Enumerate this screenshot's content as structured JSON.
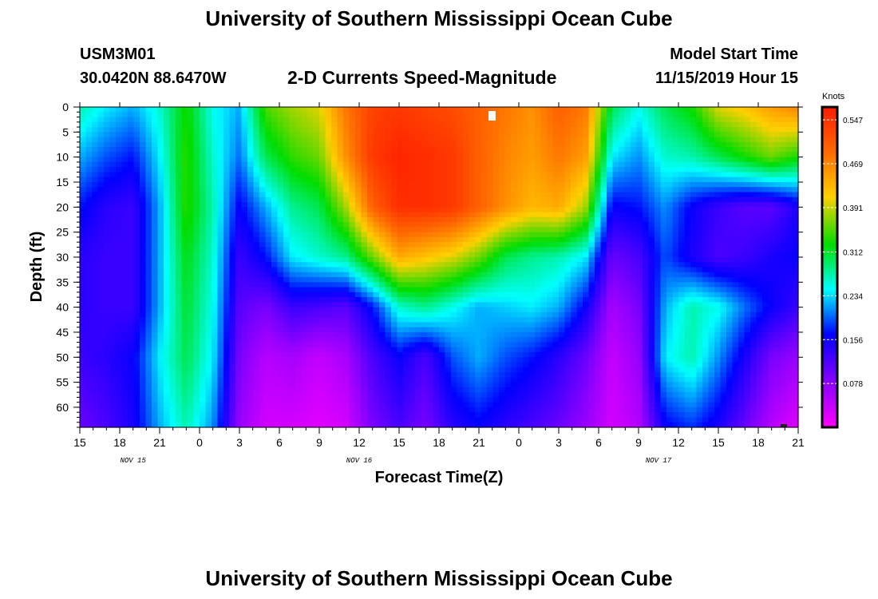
{
  "header": {
    "title": "University of Southern Mississippi Ocean Cube",
    "station_id": "USM3M01",
    "coordinates": "30.0420N 88.6470W",
    "plot_subtitle": "2-D Currents Speed-Magnitude",
    "model_start_label": "Model Start Time",
    "model_start_value": "11/15/2019 Hour 15"
  },
  "footer": {
    "title": "University of Southern Mississippi Ocean Cube"
  },
  "chart_data": {
    "type": "heatmap",
    "title": "2-D Currents Speed-Magnitude",
    "xlabel": "Forecast Time(Z)",
    "ylabel": "Depth (ft)",
    "x_hours_range": [
      0,
      54
    ],
    "x_tick_labels": [
      "15",
      "18",
      "21",
      "0",
      "3",
      "6",
      "9",
      "12",
      "15",
      "18",
      "21",
      "0",
      "3",
      "6",
      "9",
      "12",
      "15",
      "18",
      "21"
    ],
    "date_labels": [
      {
        "hour": 4,
        "text": "NOV 15"
      },
      {
        "hour": 21,
        "text": "NOV 16"
      },
      {
        "hour": 43.5,
        "text": "NOV 17"
      }
    ],
    "y_ticks": [
      0,
      5,
      10,
      15,
      20,
      25,
      30,
      35,
      40,
      45,
      50,
      55,
      60
    ],
    "y_range": [
      0,
      64
    ],
    "colorbar": {
      "unit": "Knots",
      "ticks": [
        "0.547",
        "0.469",
        "0.391",
        "0.312",
        "0.234",
        "0.156",
        "0.078"
      ],
      "tick_values": [
        0.547,
        0.469,
        0.391,
        0.312,
        0.234,
        0.156,
        0.078
      ],
      "range": [
        0,
        0.57
      ]
    },
    "speed_knots_by_hour": {
      "hours": [
        0,
        2,
        4,
        6,
        8,
        10,
        12,
        14,
        16,
        18,
        20,
        22,
        24,
        26,
        28,
        30,
        32,
        34,
        36,
        38,
        40,
        42,
        44,
        46,
        48,
        50,
        52,
        54
      ],
      "depth_0": [
        0.27,
        0.24,
        0.22,
        0.26,
        0.33,
        0.25,
        0.22,
        0.35,
        0.38,
        0.4,
        0.48,
        0.53,
        0.54,
        0.53,
        0.52,
        0.5,
        0.48,
        0.46,
        0.5,
        0.48,
        0.3,
        0.25,
        0.3,
        0.33,
        0.4,
        0.42,
        0.45,
        0.47
      ],
      "depth_10": [
        0.22,
        0.19,
        0.17,
        0.24,
        0.34,
        0.26,
        0.2,
        0.3,
        0.34,
        0.36,
        0.46,
        0.54,
        0.56,
        0.55,
        0.54,
        0.5,
        0.47,
        0.45,
        0.48,
        0.45,
        0.24,
        0.21,
        0.26,
        0.27,
        0.3,
        0.33,
        0.36,
        0.33
      ],
      "depth_20": [
        0.17,
        0.14,
        0.13,
        0.22,
        0.34,
        0.27,
        0.16,
        0.22,
        0.28,
        0.3,
        0.38,
        0.5,
        0.55,
        0.55,
        0.54,
        0.5,
        0.46,
        0.43,
        0.44,
        0.38,
        0.16,
        0.17,
        0.21,
        0.16,
        0.13,
        0.11,
        0.11,
        0.15
      ],
      "depth_30": [
        0.14,
        0.13,
        0.13,
        0.22,
        0.32,
        0.26,
        0.13,
        0.17,
        0.24,
        0.26,
        0.28,
        0.36,
        0.44,
        0.42,
        0.4,
        0.36,
        0.3,
        0.28,
        0.27,
        0.24,
        0.1,
        0.12,
        0.19,
        0.15,
        0.12,
        0.13,
        0.15,
        0.16
      ],
      "depth_40": [
        0.14,
        0.13,
        0.13,
        0.22,
        0.31,
        0.25,
        0.11,
        0.09,
        0.13,
        0.12,
        0.11,
        0.17,
        0.26,
        0.28,
        0.25,
        0.22,
        0.23,
        0.24,
        0.22,
        0.16,
        0.06,
        0.09,
        0.22,
        0.27,
        0.25,
        0.2,
        0.16,
        0.13
      ],
      "depth_50": [
        0.13,
        0.14,
        0.16,
        0.24,
        0.3,
        0.24,
        0.09,
        0.05,
        0.06,
        0.04,
        0.06,
        0.12,
        0.16,
        0.12,
        0.19,
        0.22,
        0.19,
        0.17,
        0.14,
        0.1,
        0.04,
        0.07,
        0.24,
        0.27,
        0.21,
        0.15,
        0.09,
        0.07
      ],
      "depth_64": [
        0.1,
        0.12,
        0.15,
        0.22,
        0.27,
        0.21,
        0.07,
        0.03,
        0.03,
        0.02,
        0.03,
        0.09,
        0.12,
        0.09,
        0.14,
        0.16,
        0.14,
        0.12,
        0.1,
        0.07,
        0.03,
        0.05,
        0.16,
        0.18,
        0.15,
        0.1,
        0.05,
        0.02
      ]
    }
  }
}
